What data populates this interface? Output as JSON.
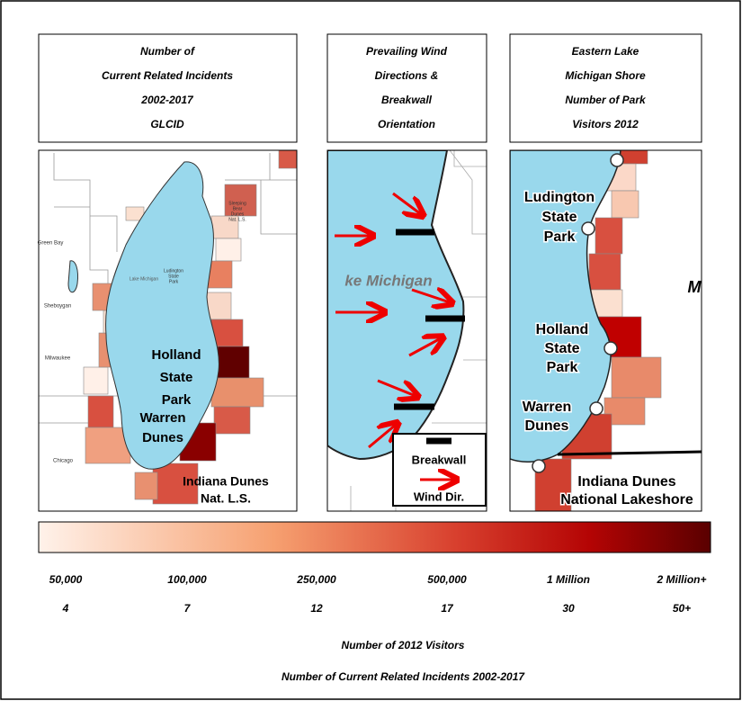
{
  "panels": [
    {
      "title": [
        "Number of",
        "Current Related Incidents",
        "2002-2017",
        "GLCID"
      ],
      "labels": [
        [
          "Sleeping",
          "Bear",
          "Dunes",
          "Nat. L.S."
        ],
        "Green Bay",
        "Lake Michigan",
        [
          "Ludington",
          "State",
          "Park"
        ],
        "Sheboygan",
        "Milwaukee",
        [
          "Holland",
          "State",
          "Park"
        ],
        [
          "Warren",
          "Dunes"
        ],
        "Chicago",
        [
          "Indiana Dunes",
          "Nat. L.S."
        ]
      ]
    },
    {
      "title": [
        "Prevailing Wind",
        "Directions &",
        "Breakwall",
        "Orientation"
      ],
      "labels": [
        "ke Michigan"
      ],
      "legend": [
        "Breakwall",
        "Wind Dir."
      ]
    },
    {
      "title": [
        "Eastern Lake",
        "Michigan Shore",
        "Number of Park",
        "Visitors 2012"
      ],
      "labels": [
        [
          "Ludington",
          "State",
          "Park"
        ],
        [
          "Holland",
          "State",
          "Park"
        ],
        [
          "Warren",
          "Dunes"
        ],
        [
          "Indiana Dunes",
          "National Lakeshore"
        ],
        "M"
      ]
    }
  ],
  "legend": {
    "visitors": [
      "50,000",
      "100,000",
      "250,000",
      "500,000",
      "1 Million",
      "2 Million+"
    ],
    "incidents": [
      "4",
      "7",
      "12",
      "17",
      "30",
      "50+"
    ],
    "visitors_title": "Number of 2012 Visitors",
    "incidents_title": "Number of Current Related Incidents 2002-2017"
  }
}
